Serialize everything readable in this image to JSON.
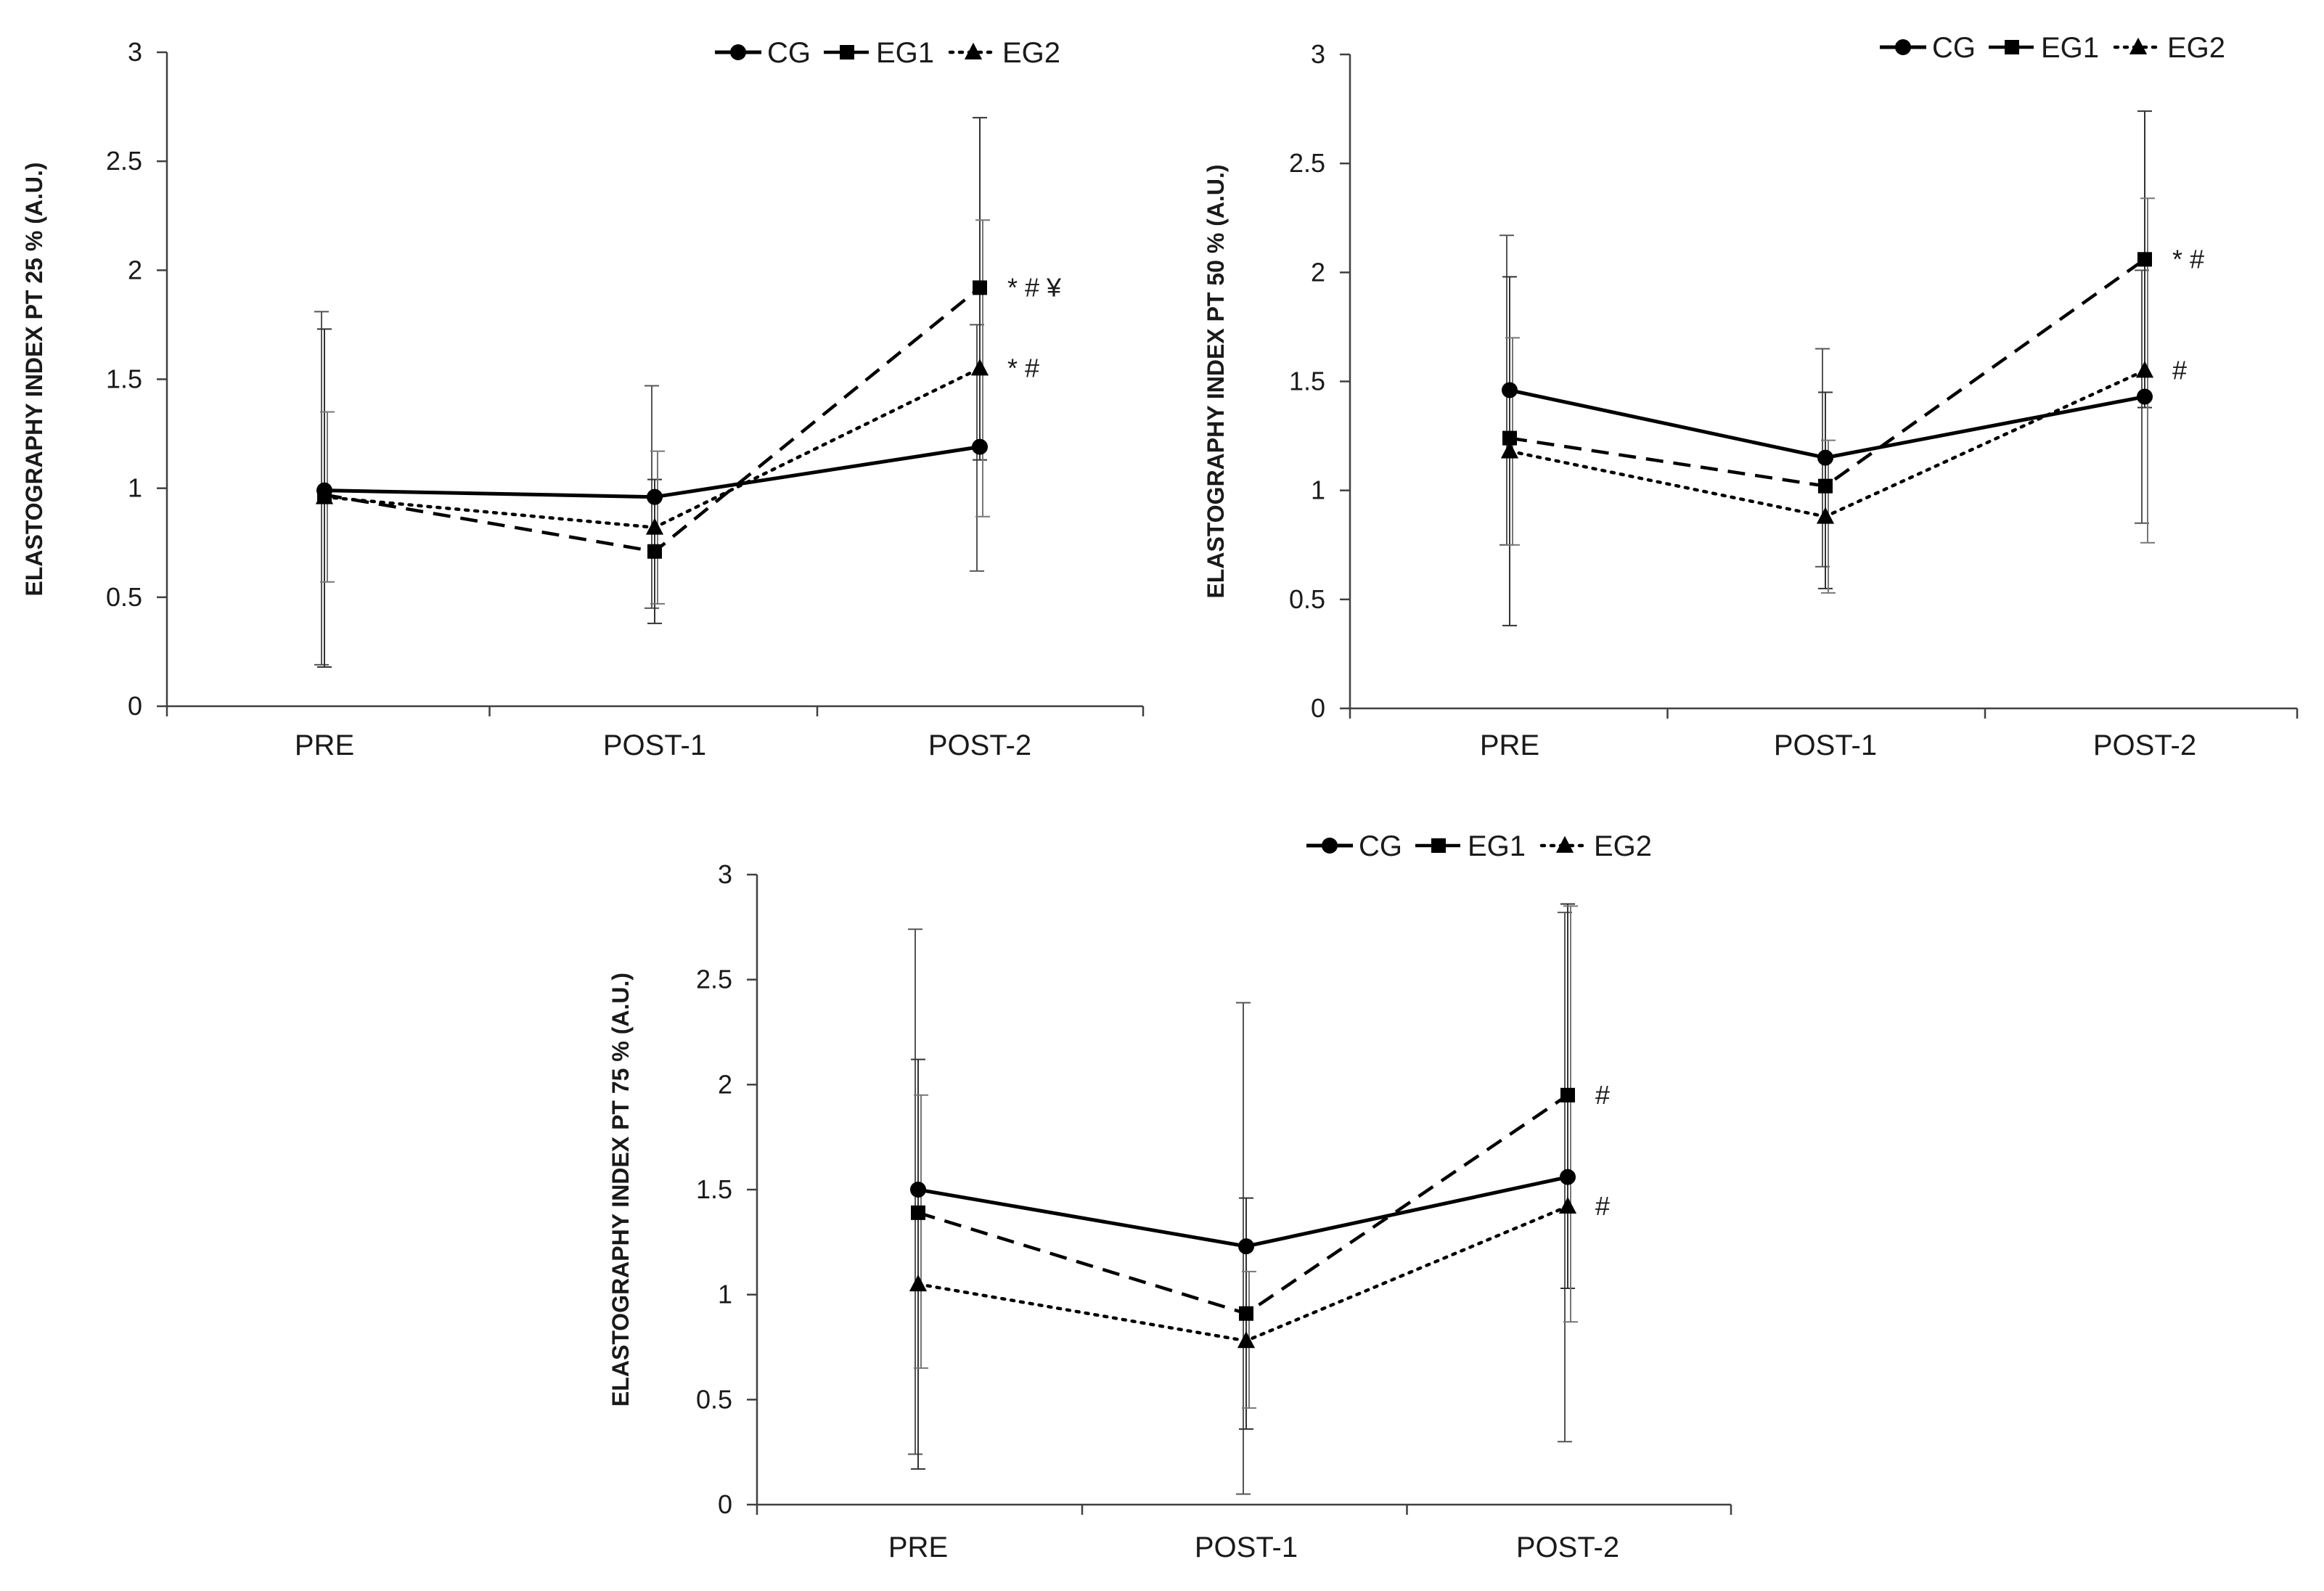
{
  "chart_data": [
    {
      "type": "line",
      "ylabel": "ELASTOGRAPHY INDEX PT 25 % (A.U.)",
      "xlabel": "",
      "categories": [
        "PRE",
        "POST-1",
        "POST-2"
      ],
      "ylim": [
        0,
        3
      ],
      "yticks": [
        0,
        0.5,
        1,
        1.5,
        2,
        2.5,
        3
      ],
      "ytick_labels": [
        "0",
        "0.5",
        "1",
        "1.5",
        "2",
        "2.5",
        "3"
      ],
      "legend_position": "top-right",
      "series": [
        {
          "name": "CG",
          "style": "solid",
          "marker": "circle",
          "values": [
            0.99,
            0.96,
            1.19
          ],
          "err_low": [
            0.19,
            0.45,
            0.62
          ],
          "err_high": [
            1.81,
            1.47,
            1.75
          ]
        },
        {
          "name": "EG1",
          "style": "dashed",
          "marker": "square",
          "values": [
            0.97,
            0.71,
            1.92
          ],
          "err_low": [
            0.18,
            0.38,
            1.13
          ],
          "err_high": [
            1.73,
            1.04,
            2.7
          ]
        },
        {
          "name": "EG2",
          "style": "dotted",
          "marker": "triangle",
          "values": [
            0.96,
            0.82,
            1.55
          ],
          "err_low": [
            0.57,
            0.47,
            0.87
          ],
          "err_high": [
            1.35,
            1.17,
            2.23
          ]
        }
      ],
      "annotations": [
        {
          "series": "EG1",
          "category": "POST-2",
          "text": "* # ¥"
        },
        {
          "series": "EG2",
          "category": "POST-2",
          "text": "* #"
        }
      ]
    },
    {
      "type": "line",
      "ylabel": "ELASTOGRAPHY INDEX PT 50 % (A.U.)",
      "xlabel": "",
      "categories": [
        "PRE",
        "POST-1",
        "POST-2"
      ],
      "ylim": [
        0,
        3
      ],
      "yticks": [
        0,
        0.5,
        1,
        1.5,
        2,
        2.5,
        3
      ],
      "ytick_labels": [
        "0",
        "0.5",
        "1",
        "1.5",
        "2",
        "2.5",
        "3"
      ],
      "legend_position": "top-right",
      "series": [
        {
          "name": "CG",
          "style": "solid",
          "marker": "circle",
          "values": [
            1.46,
            1.15,
            1.43
          ],
          "err_low": [
            0.75,
            0.65,
            0.85
          ],
          "err_high": [
            2.17,
            1.65,
            2.01
          ]
        },
        {
          "name": "EG1",
          "style": "dashed",
          "marker": "square",
          "values": [
            1.24,
            1.02,
            2.06
          ],
          "err_low": [
            0.38,
            0.55,
            1.38
          ],
          "err_high": [
            1.98,
            1.45,
            2.74
          ]
        },
        {
          "name": "EG2",
          "style": "dotted",
          "marker": "triangle",
          "values": [
            1.18,
            0.88,
            1.55
          ],
          "err_low": [
            0.75,
            0.53,
            0.76
          ],
          "err_high": [
            1.7,
            1.23,
            2.34
          ]
        }
      ],
      "annotations": [
        {
          "series": "EG1",
          "category": "POST-2",
          "text": "* #"
        },
        {
          "series": "EG2",
          "category": "POST-2",
          "text": "#"
        }
      ]
    },
    {
      "type": "line",
      "ylabel": "ELASTOGRAPHY INDEX PT 75 % (A.U.)",
      "xlabel": "",
      "categories": [
        "PRE",
        "POST-1",
        "POST-2"
      ],
      "ylim": [
        0,
        3
      ],
      "yticks": [
        0,
        0.5,
        1,
        1.5,
        2,
        2.5,
        3
      ],
      "ytick_labels": [
        "0",
        "0.5",
        "1",
        "1.5",
        "2",
        "2.5",
        "3"
      ],
      "legend_position": "top-right",
      "series": [
        {
          "name": "CG",
          "style": "solid",
          "marker": "circle",
          "values": [
            1.5,
            1.23,
            1.56
          ],
          "err_low": [
            0.24,
            0.05,
            0.3
          ],
          "err_high": [
            2.74,
            2.39,
            2.82
          ]
        },
        {
          "name": "EG1",
          "style": "dashed",
          "marker": "square",
          "values": [
            1.39,
            0.91,
            1.95
          ],
          "err_low": [
            0.17,
            0.36,
            1.03
          ],
          "err_high": [
            2.12,
            1.46,
            2.86
          ]
        },
        {
          "name": "EG2",
          "style": "dotted",
          "marker": "triangle",
          "values": [
            1.05,
            0.78,
            1.42
          ],
          "err_low": [
            0.65,
            0.46,
            0.87
          ],
          "err_high": [
            1.95,
            1.11,
            2.85
          ]
        }
      ],
      "annotations": [
        {
          "series": "EG1",
          "category": "POST-2",
          "text": "#"
        },
        {
          "series": "EG2",
          "category": "POST-2",
          "text": "#"
        }
      ]
    }
  ]
}
